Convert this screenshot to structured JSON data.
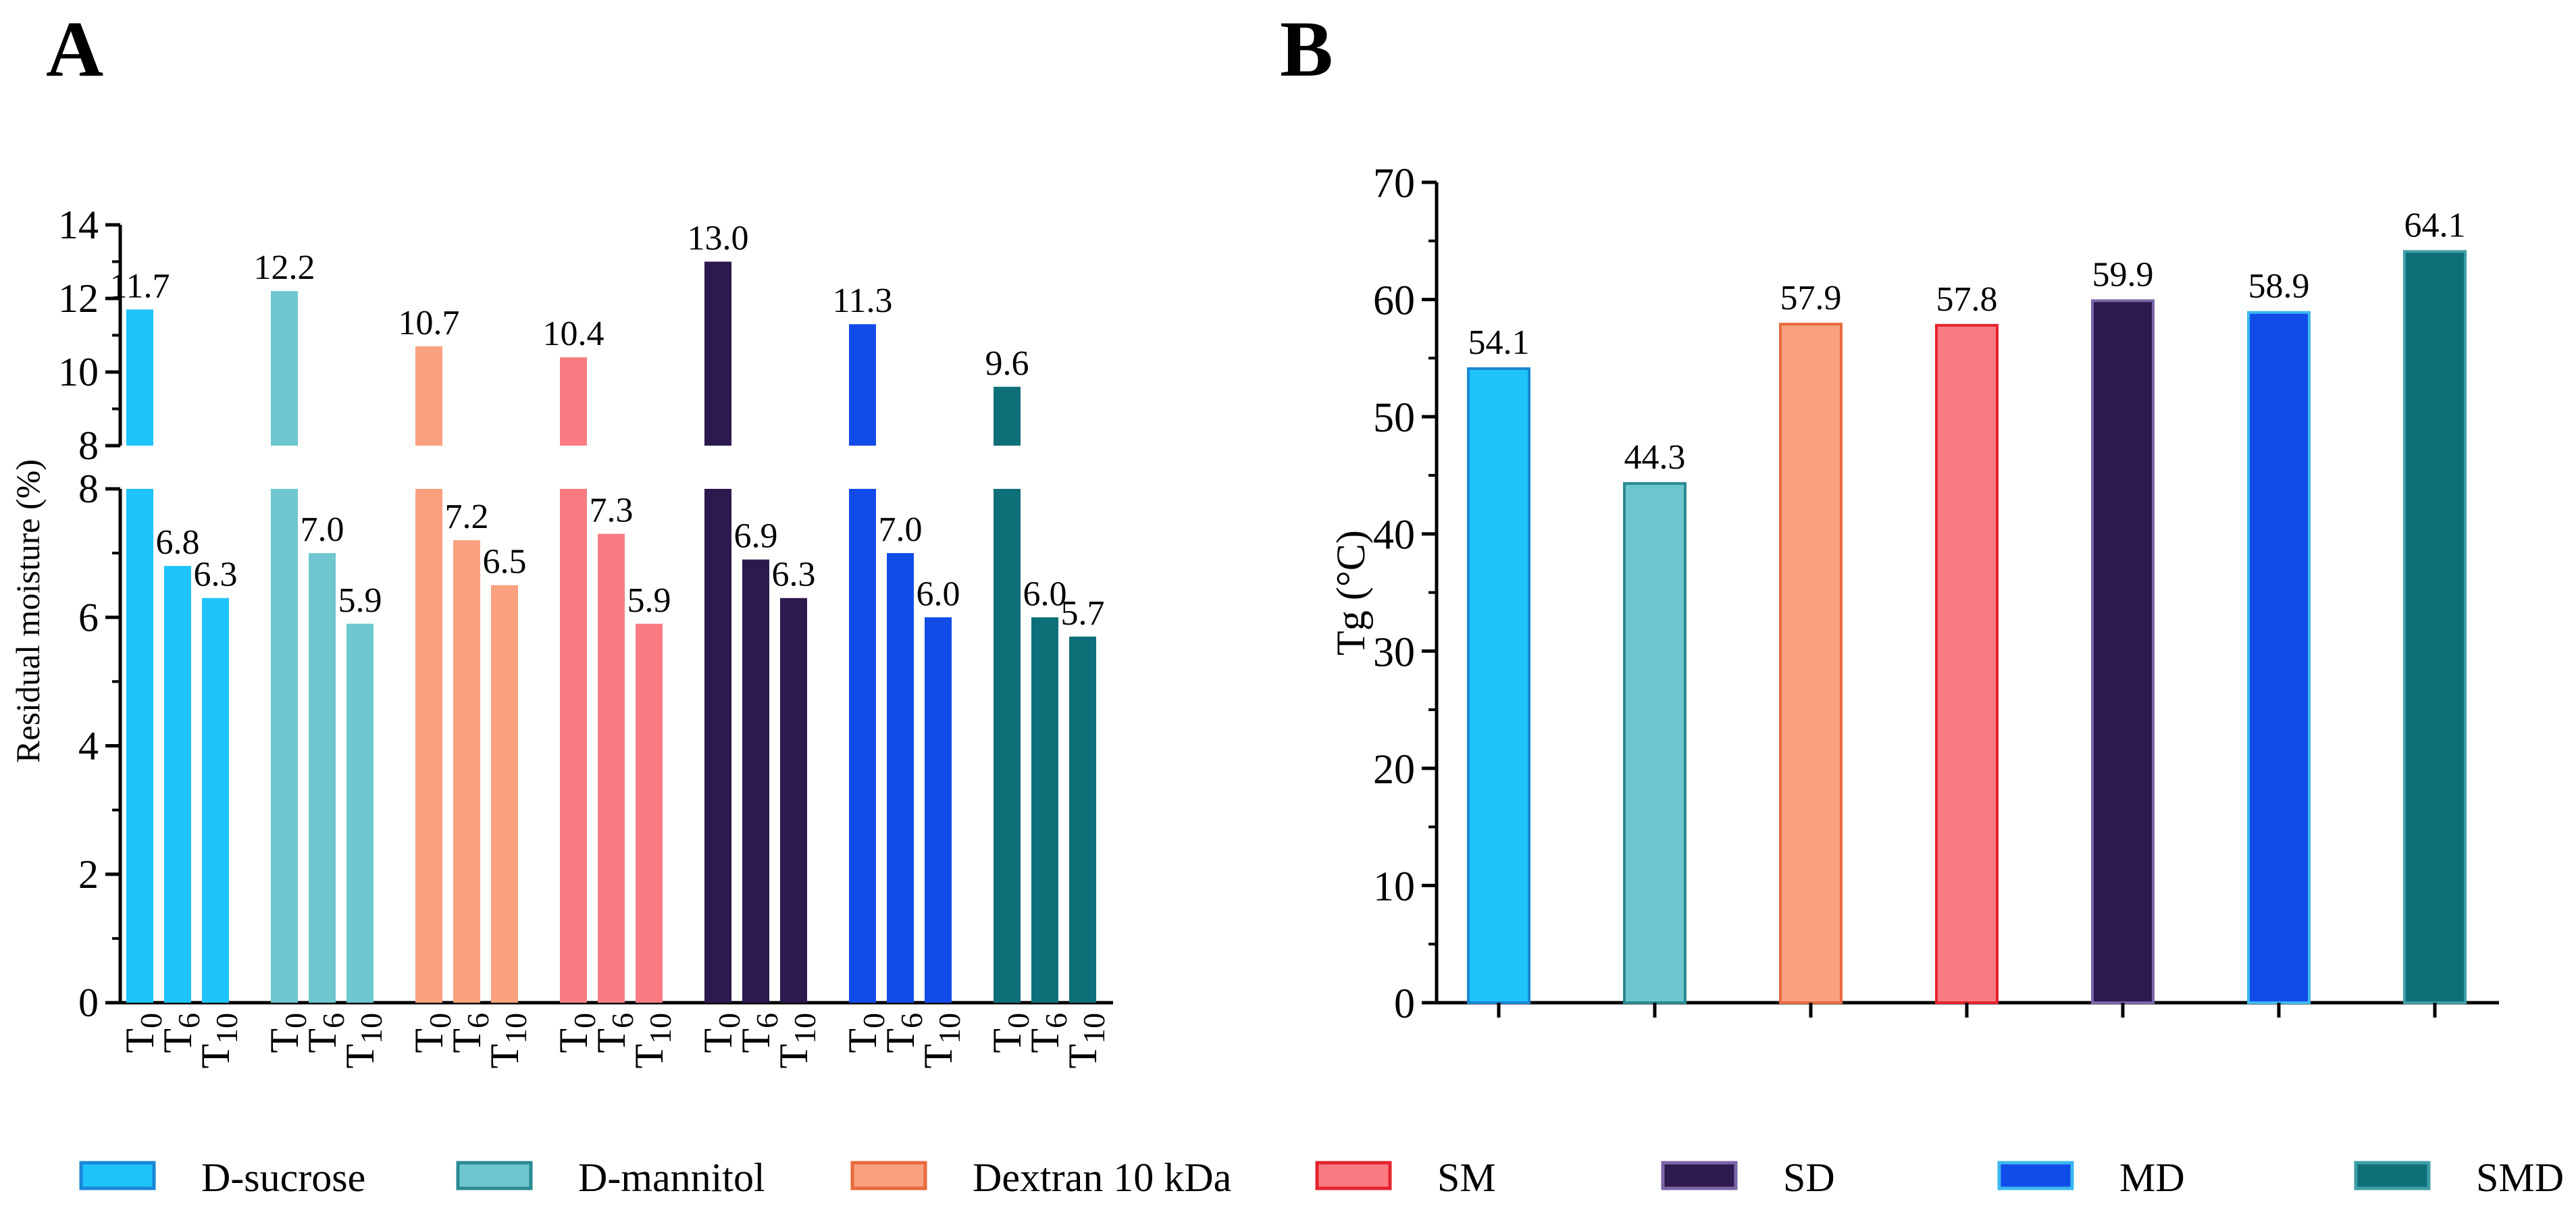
{
  "panels": {
    "a_label": "A",
    "b_label": "B"
  },
  "legend": [
    {
      "name": "D-sucrose",
      "fill": "#1EC3FA",
      "stroke": "#1A87D6"
    },
    {
      "name": "D-mannitol",
      "fill": "#6EC6CE",
      "stroke": "#2A8A92"
    },
    {
      "name": "Dextran 10 kDa",
      "fill": "#F9A07E",
      "stroke": "#E86A3E"
    },
    {
      "name": "SM",
      "fill": "#FA7C82",
      "stroke": "#E3232E"
    },
    {
      "name": "SD",
      "fill": "#2C1A4E",
      "stroke": "#7A66A8"
    },
    {
      "name": "MD",
      "fill": "#124CE8",
      "stroke": "#3BB8F0"
    },
    {
      "name": "SMD",
      "fill": "#0E6F79",
      "stroke": "#3E9EA6"
    }
  ],
  "chart_data": [
    {
      "type": "bar",
      "panel": "A",
      "ylabel": "Residual moisture (%)",
      "axis_break": {
        "lower_range": [
          0,
          8
        ],
        "upper_range": [
          8,
          14
        ]
      },
      "lower_ticks": [
        0,
        2,
        4,
        6,
        8
      ],
      "upper_ticks": [
        8,
        10,
        12,
        14
      ],
      "categories": [
        {
          "main": "T",
          "sub": "0"
        },
        {
          "main": "T",
          "sub": "6"
        },
        {
          "main": "T",
          "sub": "10"
        }
      ],
      "series": [
        {
          "name": "D-sucrose",
          "values": [
            11.7,
            6.8,
            6.3
          ],
          "labels": [
            "11.7",
            "6.8",
            "6.3"
          ]
        },
        {
          "name": "D-mannitol",
          "values": [
            12.2,
            7.0,
            5.9
          ],
          "labels": [
            "12.2",
            "7.0",
            "5.9"
          ]
        },
        {
          "name": "Dextran 10 kDa",
          "values": [
            10.7,
            7.2,
            6.5
          ],
          "labels": [
            "10.7",
            "7.2",
            "6.5"
          ]
        },
        {
          "name": "SM",
          "values": [
            10.4,
            7.3,
            5.9
          ],
          "labels": [
            "10.4",
            "7.3",
            "5.9"
          ]
        },
        {
          "name": "SD",
          "values": [
            13.0,
            6.9,
            6.3
          ],
          "labels": [
            "13.0",
            "6.9",
            "6.3"
          ]
        },
        {
          "name": "MD",
          "values": [
            11.3,
            7.0,
            6.0
          ],
          "labels": [
            "11.3",
            "7.0",
            "6.0"
          ]
        },
        {
          "name": "SMD",
          "values": [
            9.6,
            6.0,
            5.7
          ],
          "labels": [
            "9.6",
            "6.0",
            "5.7"
          ]
        }
      ]
    },
    {
      "type": "bar",
      "panel": "B",
      "ylabel": "Tg (°C)",
      "ylim": [
        0,
        70
      ],
      "yticks": [
        0,
        10,
        20,
        30,
        40,
        50,
        60,
        70
      ],
      "categories": [
        "D-sucrose",
        "D-mannitol",
        "Dextran 10 kDa",
        "SM",
        "SD",
        "MD",
        "SMD"
      ],
      "values": [
        54.1,
        44.3,
        57.9,
        57.8,
        59.9,
        58.9,
        64.1
      ],
      "labels": [
        "54.1",
        "44.3",
        "57.9",
        "57.8",
        "59.9",
        "58.9",
        "64.1"
      ]
    }
  ]
}
